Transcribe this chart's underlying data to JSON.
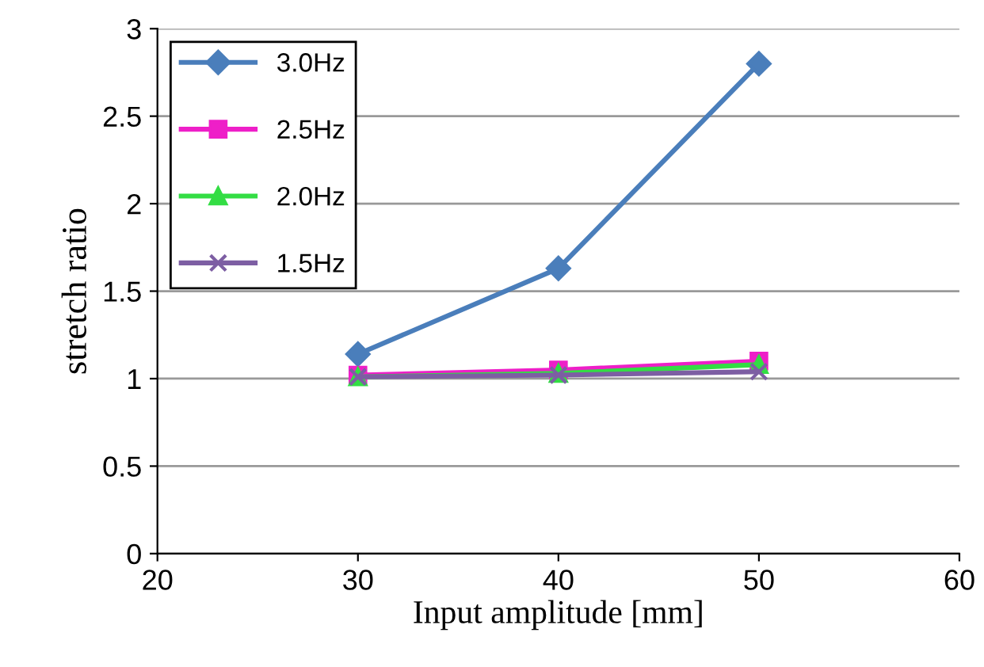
{
  "chart_data": {
    "type": "line",
    "xlabel": "Input amplitude [mm]",
    "ylabel": "stretch ratio",
    "x": [
      30,
      40,
      50
    ],
    "series": [
      {
        "name": "3.0Hz",
        "color": "#4a7ebb",
        "marker": "diamond",
        "values": [
          1.14,
          1.63,
          2.8
        ]
      },
      {
        "name": "2.5Hz",
        "color": "#ee1fc8",
        "marker": "square",
        "values": [
          1.02,
          1.05,
          1.1
        ]
      },
      {
        "name": "2.0Hz",
        "color": "#33dd44",
        "marker": "triangle",
        "values": [
          1.01,
          1.03,
          1.08
        ]
      },
      {
        "name": "1.5Hz",
        "color": "#7d5ea3",
        "marker": "cross",
        "values": [
          1.01,
          1.02,
          1.04
        ]
      }
    ],
    "xlim": [
      20,
      60
    ],
    "xticks": [
      20,
      30,
      40,
      50,
      60
    ],
    "ylim": [
      0,
      3
    ],
    "yticks": [
      0,
      0.5,
      1,
      1.5,
      2,
      2.5,
      3
    ],
    "grid": "y",
    "legend": "top left",
    "line_style": "solid"
  }
}
